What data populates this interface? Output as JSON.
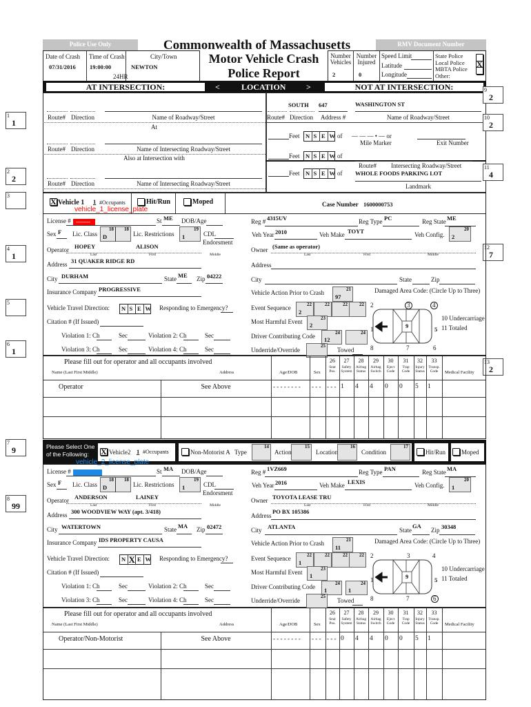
{
  "header": {
    "police_use_only": "Police Use Only",
    "title_line1": "Commonwealth of Massachusetts",
    "title_line2": "Motor Vehicle Crash",
    "title_line3": "Police Report",
    "rmv_document_number": "RMV Document Number",
    "date_label": "Date of Crash",
    "date": "07/31/2016",
    "time_label": "Time of Crash",
    "time": "19:00:00",
    "time_format": "24HR",
    "city_label": "City/Town",
    "city": "NEWTON",
    "num_vehicles_label": "Number Vehicles",
    "num_vehicles": "2",
    "num_injured_label": "Number Injured",
    "num_injured": "0",
    "speed_limit_label": "Speed Limit",
    "latitude_label": "Latitude",
    "longitude_label": "Longitude",
    "police": [
      {
        "label": "State Police",
        "mark": ""
      },
      {
        "label": "Local Police",
        "mark": "X"
      },
      {
        "label": "MBTA Police",
        "mark": ""
      },
      {
        "label": "Other:",
        "mark": null
      }
    ]
  },
  "location_bar": {
    "at_intersection": "AT INTERSECTION:",
    "prev": "<",
    "location": "LOCATION",
    "next": ">",
    "not_at_intersection": "NOT AT INTERSECTION:"
  },
  "at_intersection": {
    "route_label": "Route#",
    "direction_label": "Direction",
    "roadway_label": "Name of Roadway/Street",
    "at_label": "At",
    "intersecting_label": "Name of Intersecting Roadway/Street",
    "also_at_label": "Also at Intersection with"
  },
  "not_at_intersection": {
    "direction": "SOUTH",
    "address_number": "647",
    "roadway": "WASHINGTON ST",
    "route_label": "Route#",
    "direction_label": "Direction",
    "address_label": "Address #",
    "roadway_label": "Name of Roadway/Street",
    "feet_label": "Feet",
    "of_label": "of",
    "mile_marker_blanks": "— — — • —  or",
    "mile_marker_label": "Mile Marker",
    "exit_label": "Exit Number",
    "intersecting_label": "Intersecting Roadway/Street",
    "landmark": "WHOLE FOODS PARKING LOT",
    "landmark_label": "Landmark"
  },
  "compass": [
    "N",
    "S",
    "E",
    "W"
  ],
  "side_codes": {
    "left": [
      {
        "num": "1",
        "value": "1"
      },
      {
        "num": "2",
        "value": "2"
      },
      {
        "num": "3",
        "value": ""
      },
      {
        "num": "4",
        "value": "1"
      },
      {
        "num": "5",
        "value": ""
      },
      {
        "num": "6",
        "value": "1"
      },
      {
        "num": "7",
        "value": "9"
      },
      {
        "num": "8",
        "value": "99"
      }
    ],
    "right": [
      {
        "num": "9",
        "value": "2"
      },
      {
        "num": "10",
        "value": "2"
      },
      {
        "num": "11",
        "value": "4"
      },
      {
        "num": "12",
        "value": "7"
      },
      {
        "num": "13",
        "value": "2"
      }
    ]
  },
  "case": {
    "label": "Case Number",
    "value": "1600000753"
  },
  "labels": {
    "occupants": "#Occupants",
    "hit_run": "Hit/Run",
    "moped": "Moped",
    "select_one": "Please Select One of the Following:",
    "non_motorist": "Non-Motorist A",
    "type": "Type",
    "action": "Action",
    "location": "Location",
    "condition": "Condition",
    "license": "License #",
    "st": "St",
    "dob": "DOB/Age",
    "sex": "Sex",
    "lic_class": "Lic. Class",
    "lic_restrictions": "Lic. Restrictions",
    "cdl": "CDL",
    "endorsement": "Endorsment",
    "operator": "Operator",
    "owner": "Owner",
    "last": "Last",
    "first": "First",
    "middle": "Middle",
    "address": "Address",
    "city": "City",
    "state": "State",
    "zip": "Zip",
    "insurance": "Insurance Company",
    "travel_dir": "Vehicle Travel Direction:",
    "emergency": "Responding to Emergency?",
    "citation": "Citation # (If Issued)",
    "violations": [
      "Violation 1: Ch",
      "Violation 2: Ch",
      "Violation 3: Ch",
      "Violation 4: Ch"
    ],
    "sec": "Sec",
    "reg": "Reg #",
    "reg_type": "Reg Type",
    "reg_state": "Reg State",
    "veh_year": "Veh Year",
    "veh_make": "Veh Make",
    "veh_config": "Veh Config.",
    "action_prior": "Vehicle Action Prior to Crash",
    "event_seq": "Event Sequence",
    "most_harmful": "Most Harmful Event",
    "driver_code": "Driver Contributing Code",
    "underride": "Underride/Override",
    "towed": "Towed",
    "damaged": "Damaged Area Code: (Circle Up to Three)",
    "undercarriage": "10 Undercarriage",
    "totaled": "11 Totaled",
    "damage_zones": [
      "1",
      "2",
      "3",
      "4",
      "5",
      "6",
      "7",
      "8",
      "9"
    ],
    "codes": {
      "c14": "14",
      "c15": "15",
      "c16": "16",
      "c17": "17",
      "c18": "18",
      "c19": "19",
      "c20": "20",
      "c21": "21",
      "c22": "22",
      "c23": "23",
      "c24": "24",
      "c25": "25"
    },
    "table": {
      "fill_out": "Please fill out for operator and all occupants involved",
      "col_name": "Name (Last First Middle)",
      "col_address": "Address",
      "col_age": "Age/DOB",
      "col_sex": "Sex",
      "code_cols": [
        {
          "num": "26",
          "label": "Seat Pos."
        },
        {
          "num": "27",
          "label": "Safety System"
        },
        {
          "num": "28",
          "label": "Airbag Status"
        },
        {
          "num": "29",
          "label": "Airbag Switch"
        },
        {
          "num": "30",
          "label": "Eject Code"
        },
        {
          "num": "31",
          "label": "Trap Code"
        },
        {
          "num": "32",
          "label": "Injury Status"
        },
        {
          "num": "33",
          "label": "Transp. Code"
        }
      ],
      "col_medical": "Medical Facility"
    }
  },
  "vehicles": [
    {
      "select_mark": "X",
      "vehicle_label": "Vehicle 1",
      "occupants": "1",
      "plate_annotation": "vehicle_1_license_plate",
      "plate_color": "#ff0000",
      "license_redacted": "-------",
      "st": "ME",
      "dob": "",
      "sex": "F",
      "lic_class": "D",
      "lic_restrictions": "1",
      "operator_last": "HOPEY",
      "operator_first": "ALISON",
      "address": "31 QUAKER RIDGE RD",
      "city": "DURHAM",
      "state": "ME",
      "zip": "04222",
      "insurance": "PROGRESSIVE",
      "travel_mark_index": null,
      "reg": "4315UV",
      "reg_type": "PC",
      "reg_state": "ME",
      "veh_year": "2010",
      "veh_make": "TOYT",
      "veh_config": "2",
      "owner_last": "(Same as operator)",
      "owner_address": "",
      "owner_city": "",
      "owner_state": "",
      "owner_zip": "",
      "action_prior": "97",
      "event_sequence": [
        "2",
        "",
        "",
        ""
      ],
      "most_harmful": "2",
      "driver_codes": [
        "12",
        ""
      ],
      "underride": "",
      "damaged_areas": [
        "3",
        "4"
      ],
      "occupant_rows": [
        {
          "name": "Operator",
          "address": "See Above",
          "age": "- - - - - - - -",
          "sex": "- - -",
          "seat": "- - -",
          "codes": [
            "1",
            "4",
            "4",
            "0",
            "0",
            "5",
            "1"
          ]
        }
      ]
    },
    {
      "select_mark": "X",
      "vehicle_label": "Vehicle2",
      "occupants": "1",
      "plate_annotation": "vehicle_2_license_plate",
      "plate_color": "#1e88e5",
      "license_redacted": "",
      "st": "MA",
      "dob": "",
      "sex": "F",
      "lic_class": "D",
      "lic_restrictions": "1",
      "operator_last": "ANDERSON",
      "operator_first": "LAINEY",
      "address": "300 WOODVIEW WAY (apt. 3/418)",
      "city": "WATERTOWN",
      "state": "MA",
      "zip": "02472",
      "insurance": "IDS PROPERTY CAUSA",
      "travel_mark_index": 1,
      "travel_mark": "X",
      "reg": "1VZ669",
      "reg_type": "PAN",
      "reg_state": "MA",
      "veh_year": "2016",
      "veh_make": "LEXIS",
      "veh_config": "1",
      "owner_last": "TOYOTA LEASE TRU",
      "owner_address": "PO BX 105386",
      "owner_city": "ATLANTA",
      "owner_state": "GA",
      "owner_zip": "30348",
      "action_prior": "11",
      "event_sequence": [
        "1",
        "",
        "",
        ""
      ],
      "most_harmful": "1",
      "driver_codes": [
        "1",
        "1"
      ],
      "underride": "",
      "damaged_areas": [
        "6"
      ],
      "occupant_rows": [
        {
          "name": "Operator/Non-Motorist",
          "address": "See Above",
          "age": "- - - - - - - -",
          "sex": "- - -",
          "seat": "- - -",
          "codes": [
            "0",
            "4",
            "4",
            "0",
            "0",
            "5",
            "1"
          ]
        }
      ]
    }
  ]
}
